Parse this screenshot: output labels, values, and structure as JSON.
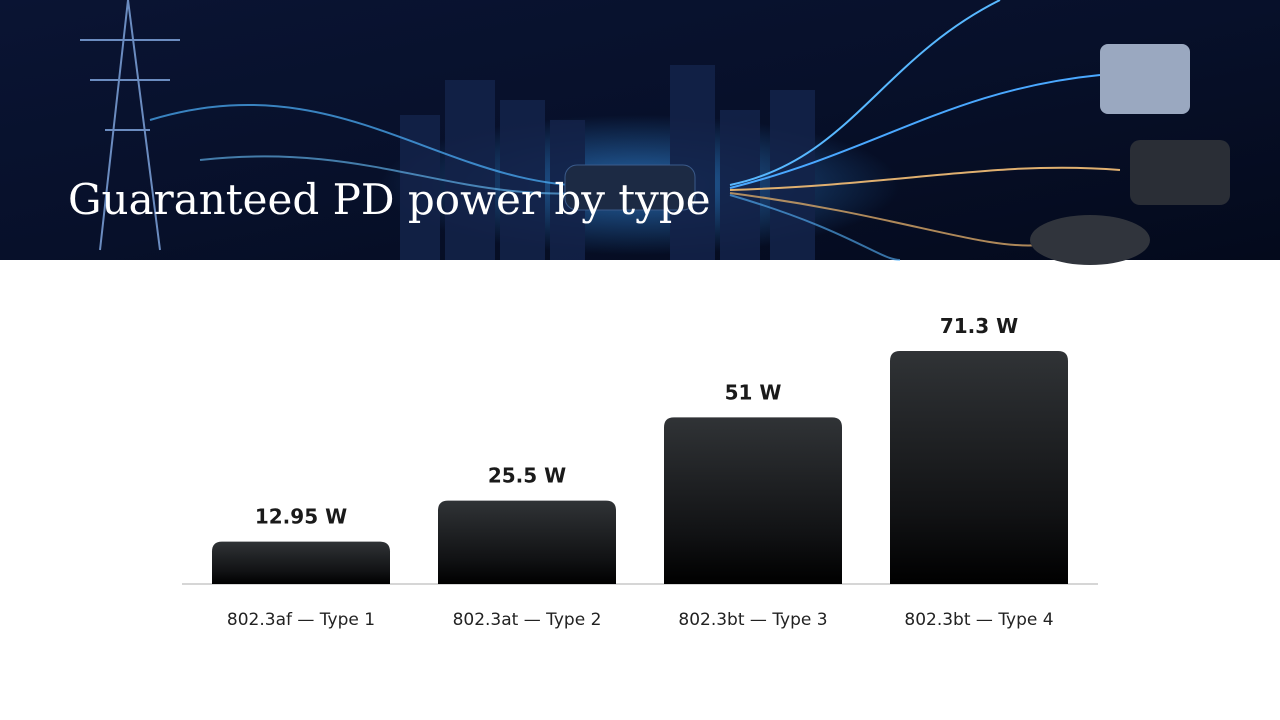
{
  "chart_data": {
    "type": "bar",
    "title": "Guaranteed PD power by type",
    "categories": [
      "802.3af — Type 1",
      "802.3at — Type 2",
      "802.3bt — Type 3",
      "802.3bt — Type 4"
    ],
    "values": [
      12.95,
      25.5,
      51,
      71.3
    ],
    "value_labels": [
      "12.95 W",
      "25.5 W",
      "51 W",
      "71.3 W"
    ]
  }
}
